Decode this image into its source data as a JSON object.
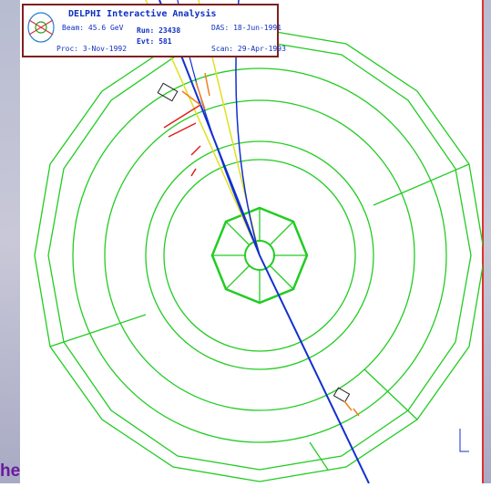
{
  "header": {
    "title": "DELPHI Interactive Analysis",
    "beam": "Beam: 45.6 GeV",
    "run": "Run: 23438",
    "evt": "Evt: 581",
    "das": "DAS: 18-Jun-1991",
    "proc": "Proc: 3-Nov-1992",
    "scan": "Scan: 29-Apr-1993"
  },
  "footer": {
    "fragment": "he"
  }
}
